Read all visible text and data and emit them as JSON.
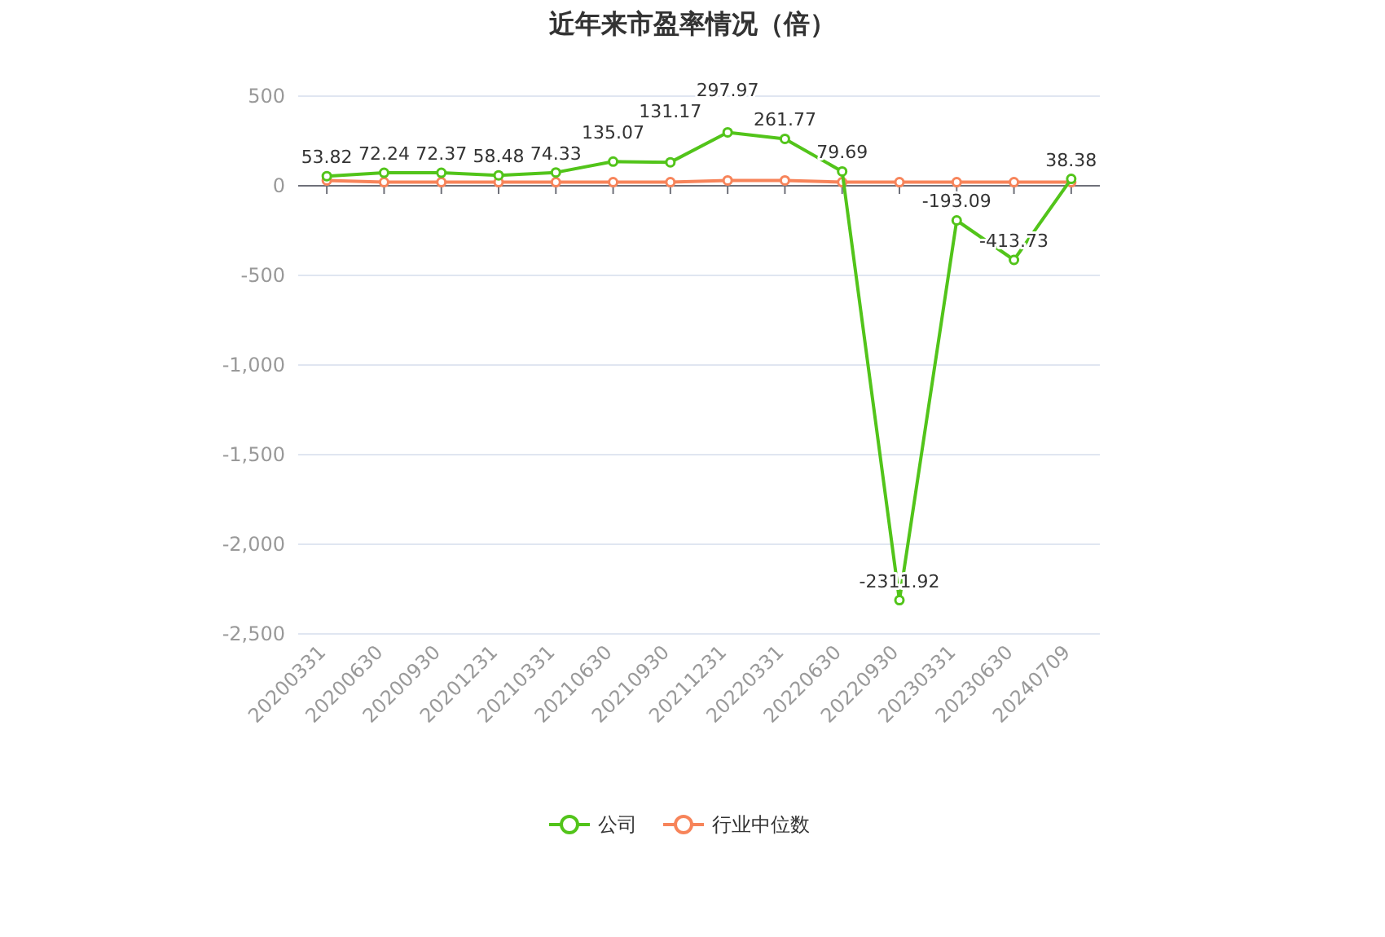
{
  "chart_data": {
    "type": "line",
    "title": "近年来市盈率情况（倍）",
    "categories": [
      "20200331",
      "20200630",
      "20200930",
      "20201231",
      "20210331",
      "20210630",
      "20210930",
      "20211231",
      "20220331",
      "20220630",
      "20220930",
      "20230331",
      "20230630",
      "20240709"
    ],
    "series": [
      {
        "name": "公司",
        "color": "#52c41a",
        "values": [
          53.82,
          72.24,
          72.37,
          58.48,
          74.33,
          135.07,
          131.17,
          297.97,
          261.77,
          79.69,
          -2311.92,
          -193.09,
          -413.73,
          38.38
        ],
        "value_labels": [
          "53.82",
          "72.24",
          "72.37",
          "58.48",
          "74.33",
          "135.07",
          "131.17",
          "297.97",
          "261.77",
          "79.69",
          "-2311.92",
          "-193.09",
          "-413.73",
          "38.38"
        ]
      },
      {
        "name": "行业中位数",
        "color": "#f7845a",
        "values": [
          30,
          20,
          20,
          20,
          20,
          20,
          20,
          30,
          30,
          20,
          20,
          20,
          20,
          20
        ]
      }
    ],
    "ylim": [
      -2500,
      500
    ],
    "yticks": [
      {
        "value": -2500,
        "label": "-2,500"
      },
      {
        "value": -2000,
        "label": "-2,000"
      },
      {
        "value": -1500,
        "label": "-1,500"
      },
      {
        "value": -1000,
        "label": "-1,000"
      },
      -500,
      0,
      500
    ],
    "grid": "y",
    "legend": "bottom",
    "marker": "circle",
    "line_style": "solid"
  }
}
